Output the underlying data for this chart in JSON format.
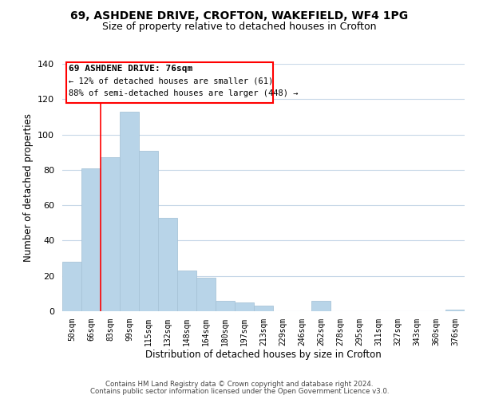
{
  "title1": "69, ASHDENE DRIVE, CROFTON, WAKEFIELD, WF4 1PG",
  "title2": "Size of property relative to detached houses in Crofton",
  "xlabel": "Distribution of detached houses by size in Crofton",
  "ylabel": "Number of detached properties",
  "bar_color": "#b8d4e8",
  "bar_edge_color": "#a8c4d8",
  "categories": [
    "50sqm",
    "66sqm",
    "83sqm",
    "99sqm",
    "115sqm",
    "132sqm",
    "148sqm",
    "164sqm",
    "180sqm",
    "197sqm",
    "213sqm",
    "229sqm",
    "246sqm",
    "262sqm",
    "278sqm",
    "295sqm",
    "311sqm",
    "327sqm",
    "343sqm",
    "360sqm",
    "376sqm"
  ],
  "values": [
    28,
    81,
    87,
    113,
    91,
    53,
    23,
    19,
    6,
    5,
    3,
    0,
    0,
    6,
    0,
    0,
    0,
    0,
    0,
    0,
    1
  ],
  "ylim": [
    0,
    140
  ],
  "yticks": [
    0,
    20,
    40,
    60,
    80,
    100,
    120,
    140
  ],
  "annotation_title": "69 ASHDENE DRIVE: 76sqm",
  "annotation_line1": "← 12% of detached houses are smaller (61)",
  "annotation_line2": "88% of semi-detached houses are larger (448) →",
  "footer1": "Contains HM Land Registry data © Crown copyright and database right 2024.",
  "footer2": "Contains public sector information licensed under the Open Government Licence v3.0.",
  "background_color": "#ffffff",
  "grid_color": "#c8d8e8"
}
